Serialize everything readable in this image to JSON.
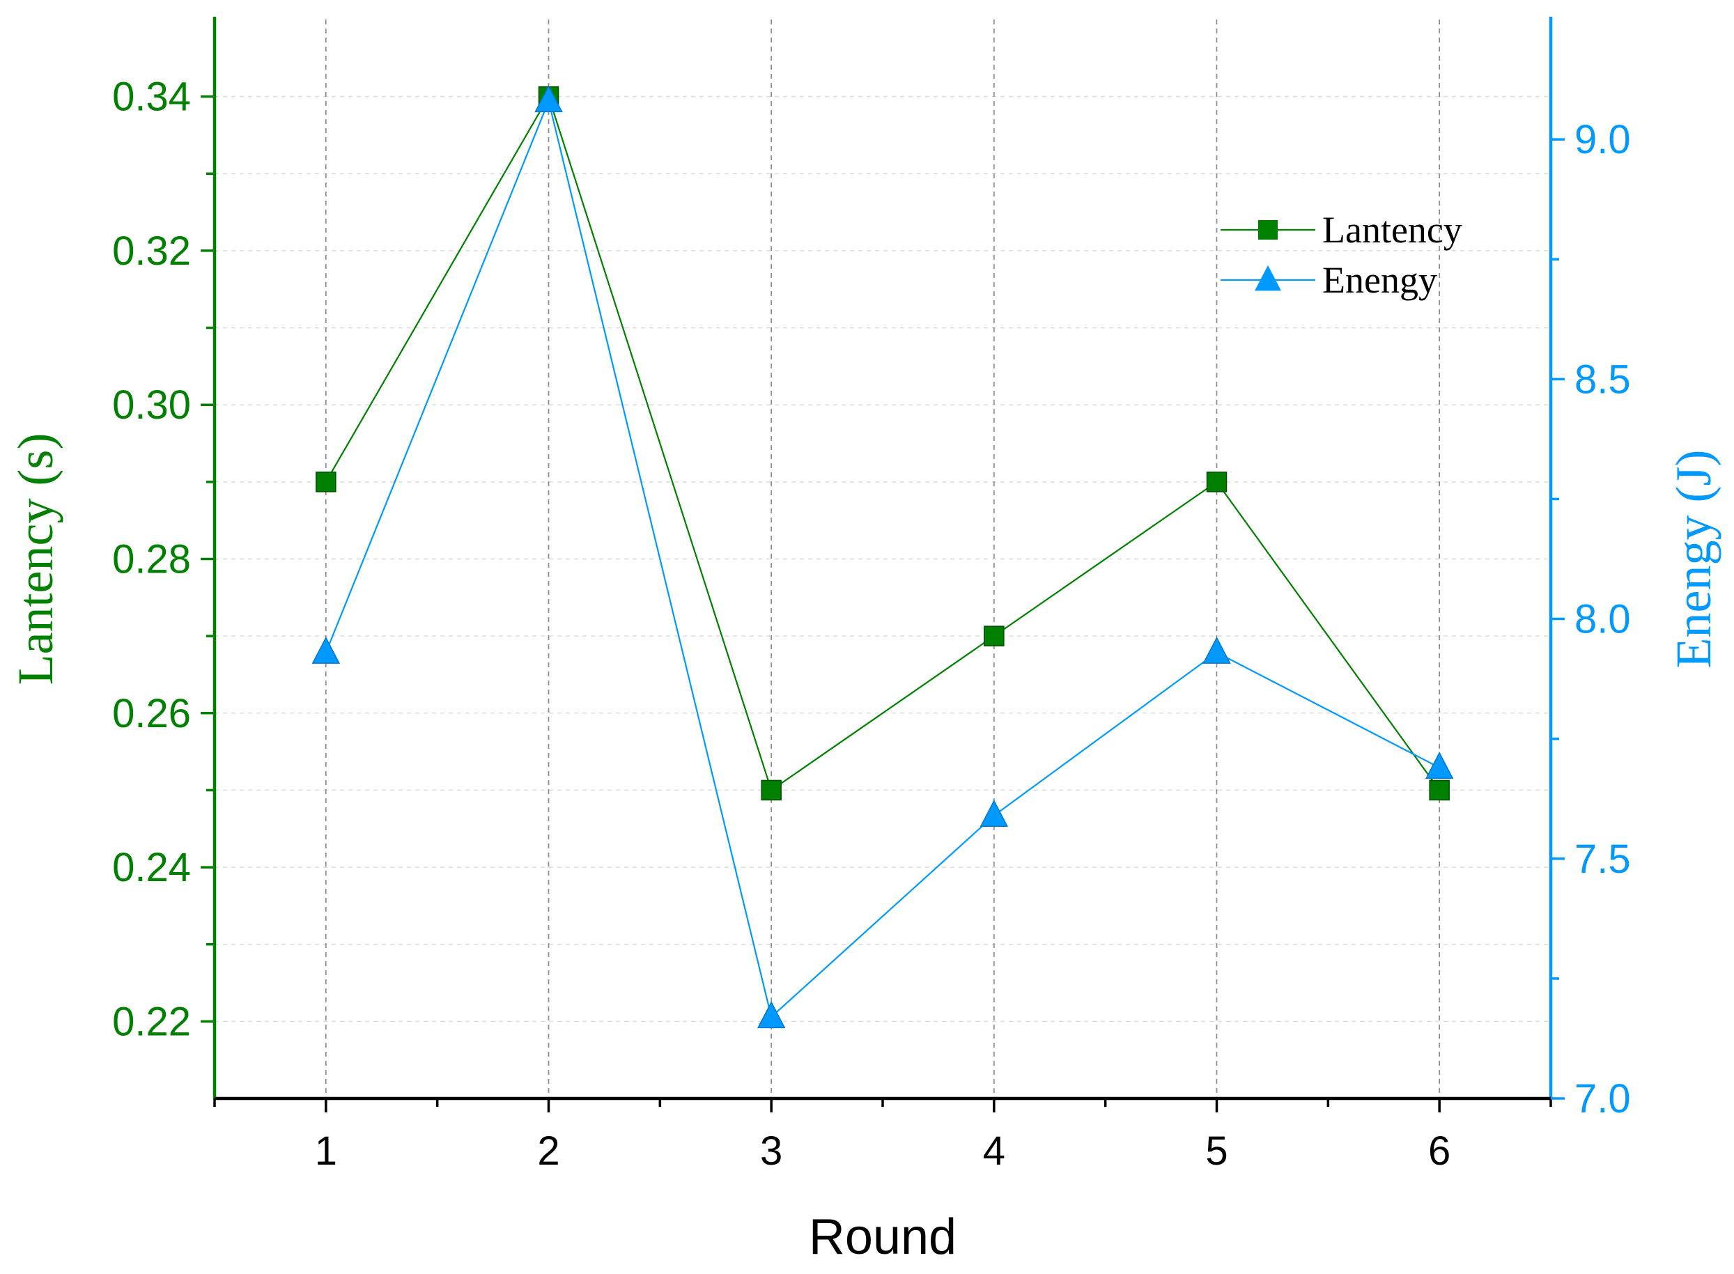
{
  "chart_data": {
    "type": "line",
    "title": "",
    "xlabel": "Round",
    "x": [
      1,
      2,
      3,
      4,
      5,
      6
    ],
    "xlim": [
      0.5,
      6.5
    ],
    "x_ticks": [
      "1",
      "2",
      "3",
      "4",
      "5",
      "6"
    ],
    "y_left": {
      "label": "Lantency (s)",
      "ylim": [
        0.21,
        0.35
      ],
      "ticks": [
        "0.22",
        "0.24",
        "0.26",
        "0.28",
        "0.30",
        "0.32",
        "0.34"
      ],
      "tick_values": [
        0.22,
        0.24,
        0.26,
        0.28,
        0.3,
        0.32,
        0.34
      ],
      "color": "#008000"
    },
    "y_right": {
      "label": "Enengy (J)",
      "ylim": [
        7.0,
        9.25
      ],
      "ticks": [
        "7.0",
        "7.5",
        "8.0",
        "8.5",
        "9.0"
      ],
      "tick_values": [
        7.0,
        7.5,
        8.0,
        8.5,
        9.0
      ],
      "color": "#0099ff"
    },
    "series": [
      {
        "name": "Lantency",
        "axis": "left",
        "marker": "square",
        "color": "#008000",
        "values": [
          0.29,
          0.34,
          0.25,
          0.27,
          0.29,
          0.25
        ]
      },
      {
        "name": "Enengy",
        "axis": "right",
        "marker": "triangle",
        "color": "#0099ff",
        "values": [
          7.93,
          9.08,
          7.17,
          7.59,
          7.93,
          7.69
        ]
      }
    ],
    "grid": true,
    "legend_position": "top-right"
  }
}
